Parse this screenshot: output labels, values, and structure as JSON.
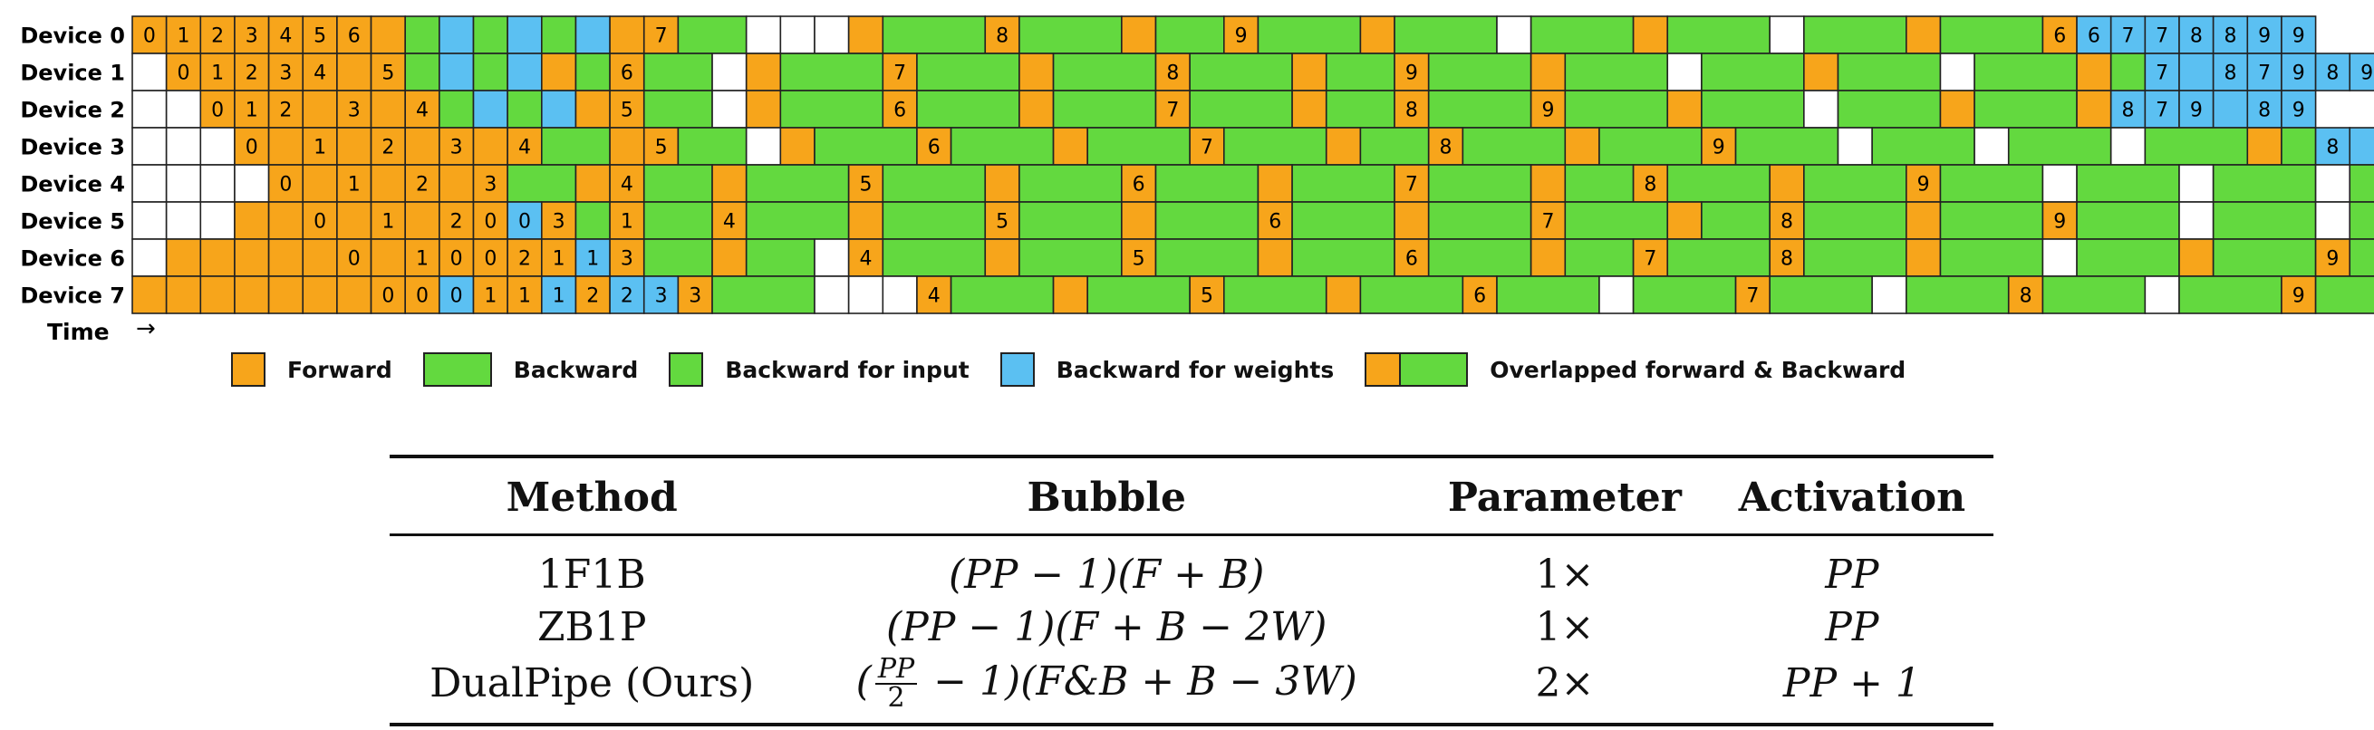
{
  "device_labels": [
    "Device 0",
    "Device 1",
    "Device 2",
    "Device 3",
    "Device 4",
    "Device 5",
    "Device 6",
    "Device 7"
  ],
  "time_label": "Time",
  "time_arrow": "→",
  "legend": [
    {
      "label": "Forward",
      "kind": "forward"
    },
    {
      "label": "Backward",
      "kind": "backward"
    },
    {
      "label": "Backward for input",
      "kind": "backward-input"
    },
    {
      "label": "Backward for weights",
      "kind": "backward-weights"
    },
    {
      "label": "Overlapped forward & Backward",
      "kind": "overlapped"
    }
  ],
  "colors": {
    "forward": "#F7A51B",
    "backward": "#63D93F",
    "weights": "#5BC0F2",
    "empty": "#FFFFFF",
    "border": "#222222"
  },
  "schedule": [
    "O0 O1 O2 O3 O4 O5 O6 O. G. B. G. B. G. B. O. O7 G2 . . . O. G3 O8 G3 O. G2 O9 G3 O. G3 . G3 O. G3 . G3 O. G3 O6 B6 B7 B7 B8 B8 B9 B9",
    ". O0 O1 O2 O3 O4 O. O5 G. B. G. B. O. G. O6 G2 . O. G3 O7 G3 O. G3 O8 G3 O. G2 O9 G3 O. G3 . G3 O. G3 . G3 O. G. B7 B. B8 B7 B9 B8 B9",
    ". . O0 O1 O2 O. O3 O. O4 G. B. G. B. O. O5 G2 . O. G3 O6 G3 O. G3 O7 G3 O. G2 O8 G3 O9 G3 O. G3 . G3 O. G3 O. B8 B7 B9 B. B8 B9",
    ". . . O0 O. O1 O. O2 O. O3 O. O4 G2 O. O5 G2 . O. G3 O6 G3 O. G3 O7 G3 O. G2 O8 G3 O. G3 O9 G3 . G3 . G3 . G3 O. G. B8 B. B9 B. B8 B. B9",
    ". . . . O0 O. O1 O. O2 O. O3 G2 O. O4 G2 O. G3 O5 G3 O. G3 O6 G3 O. G3 O7 G3 O. G2 O8 G3 O. G3 O9 G3 . G3 . G3 . G3 O. G. B9 B. B8 B. B9 B.",
    ". . . O. O. O0 O. O1 O. O2 O0 B0 O3 G. O1 G2 O4 G3 O. G3 O5 G3 O. G3 O6 G3 O. G3 O7 G3 O. G2 O8 G3 O. G3 O9 G3 . G3 . G3 O. G3 O. B9 B. B. B9 B. B.",
    ". O. O. O. O. O. O0 O. O1 O0 O0 O2 O1 B1 O3 G2 O. G2 . O4 G3 O. G3 O5 G3 O. G3 O6 G3 O. G2 O7 G3 O8 G3 O. G3 . G3 O. G3 O9 G3 O. B9 B. B. B9 B. B.",
    "O. O. O. O. O. O. O. O0 O0 B0 O1 O1 B1 O2 B2 B3 O3 G3 . . . O4 G3 O. G3 O5 G3 O. G3 O6 G3 . G3 O7 G3 . G3 O8 G3 . G3 O9 G3 O. B. B. B. B. B. B."
  ],
  "table": {
    "headers": [
      "Method",
      "Bubble",
      "Parameter",
      "Activation"
    ],
    "rows": [
      {
        "method": "1F1B",
        "bubble": "(PP − 1)(F + B)",
        "parameter": "1×",
        "activation": "PP"
      },
      {
        "method": "ZB1P",
        "bubble": "(PP − 1)(F + B − 2W)",
        "parameter": "1×",
        "activation": "PP"
      },
      {
        "method": "DualPipe (Ours)",
        "bubble_frac_num": "PP",
        "bubble_frac_den": "2",
        "bubble_rest": " − 1)(F&B + B − 3W)",
        "parameter": "2×",
        "activation": "PP + 1"
      }
    ]
  }
}
